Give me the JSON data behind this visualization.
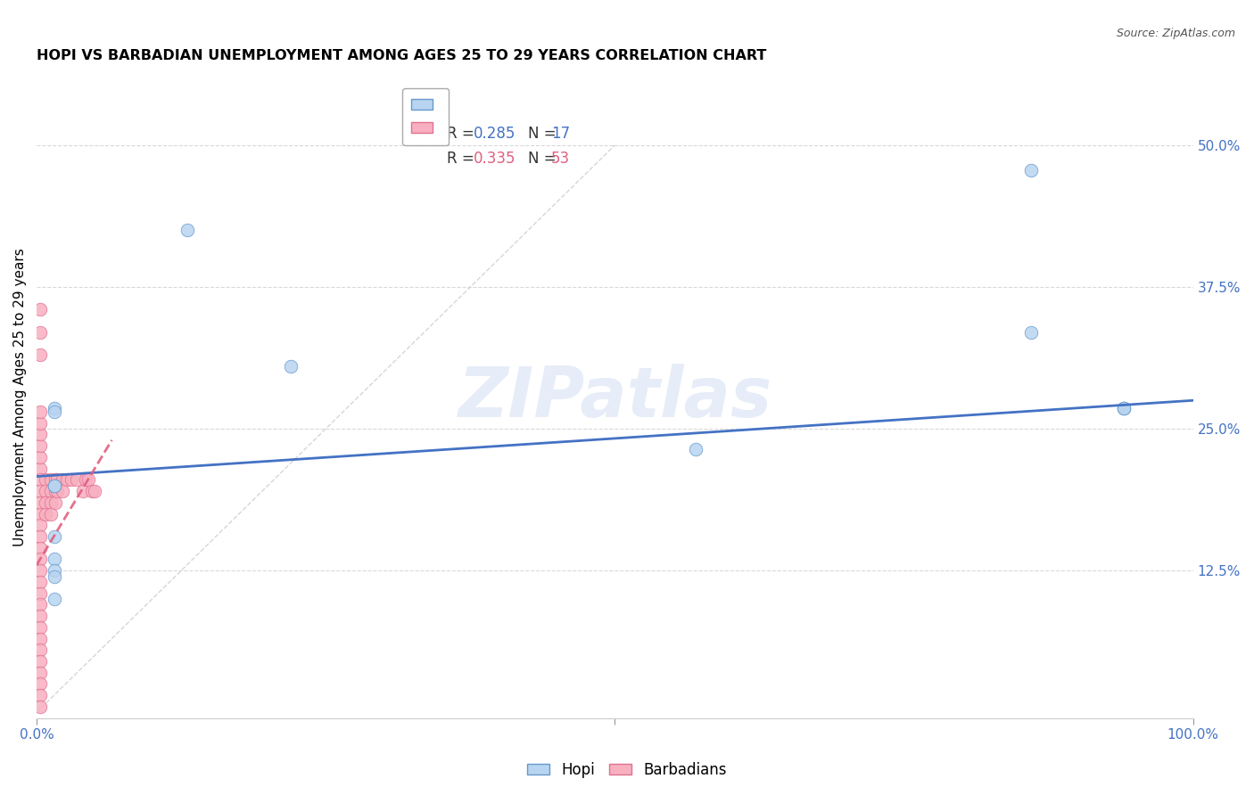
{
  "title": "HOPI VS BARBADIAN UNEMPLOYMENT AMONG AGES 25 TO 29 YEARS CORRELATION CHART",
  "source": "Source: ZipAtlas.com",
  "ylabel": "Unemployment Among Ages 25 to 29 years",
  "xlim": [
    0.0,
    1.0
  ],
  "ylim": [
    -0.005,
    0.56
  ],
  "yticks_right": [
    0.125,
    0.25,
    0.375,
    0.5
  ],
  "yticklabels_right": [
    "12.5%",
    "25.0%",
    "37.5%",
    "50.0%"
  ],
  "hopi_color": "#b8d4f0",
  "hopi_edge_color": "#6699cc",
  "barbadian_color": "#f8b0c0",
  "barbadian_edge_color": "#e07090",
  "trendline_hopi_color": "#4472c4",
  "trendline_barbadian_color": "#e06080",
  "diagonal_color": "#cccccc",
  "grid_color": "#d8d8d8",
  "watermark": "ZIPatlas",
  "legend_r_hopi": "R = 0.285",
  "legend_n_hopi": "N = 17",
  "legend_r_barbadian": "R = 0.335",
  "legend_n_barbadian": "N = 53",
  "hopi_x": [
    0.015,
    0.015,
    0.13,
    0.22,
    0.57,
    0.86,
    0.94,
    0.86,
    0.94,
    0.94,
    0.015,
    0.015,
    0.015,
    0.015,
    0.015,
    0.015,
    0.015
  ],
  "hopi_y": [
    0.268,
    0.265,
    0.425,
    0.305,
    0.232,
    0.478,
    0.268,
    0.335,
    0.268,
    0.268,
    0.2,
    0.2,
    0.155,
    0.135,
    0.125,
    0.12,
    0.1
  ],
  "barbadian_x": [
    0.003,
    0.003,
    0.003,
    0.003,
    0.003,
    0.003,
    0.003,
    0.003,
    0.003,
    0.003,
    0.003,
    0.003,
    0.003,
    0.003,
    0.003,
    0.003,
    0.003,
    0.003,
    0.003,
    0.003,
    0.003,
    0.003,
    0.003,
    0.003,
    0.003,
    0.003,
    0.003,
    0.008,
    0.008,
    0.008,
    0.008,
    0.012,
    0.012,
    0.012,
    0.012,
    0.016,
    0.016,
    0.016,
    0.018,
    0.018,
    0.022,
    0.022,
    0.026,
    0.03,
    0.035,
    0.04,
    0.042,
    0.045,
    0.048,
    0.05,
    0.003,
    0.003,
    0.003
  ],
  "barbadian_y": [
    0.215,
    0.205,
    0.195,
    0.185,
    0.175,
    0.165,
    0.155,
    0.145,
    0.135,
    0.125,
    0.115,
    0.105,
    0.095,
    0.085,
    0.075,
    0.065,
    0.055,
    0.045,
    0.035,
    0.025,
    0.015,
    0.005,
    0.225,
    0.235,
    0.245,
    0.255,
    0.265,
    0.205,
    0.195,
    0.185,
    0.175,
    0.205,
    0.195,
    0.185,
    0.175,
    0.205,
    0.195,
    0.185,
    0.205,
    0.195,
    0.205,
    0.195,
    0.205,
    0.205,
    0.205,
    0.195,
    0.205,
    0.205,
    0.195,
    0.195,
    0.315,
    0.335,
    0.355
  ],
  "hopi_trendline_x": [
    0.0,
    1.0
  ],
  "hopi_trendline_y": [
    0.208,
    0.275
  ],
  "barb_trendline_x": [
    0.0,
    0.065
  ],
  "barb_trendline_y": [
    0.13,
    0.24
  ],
  "marker_size": 110,
  "title_fontsize": 11.5,
  "label_fontsize": 11,
  "tick_fontsize": 11
}
